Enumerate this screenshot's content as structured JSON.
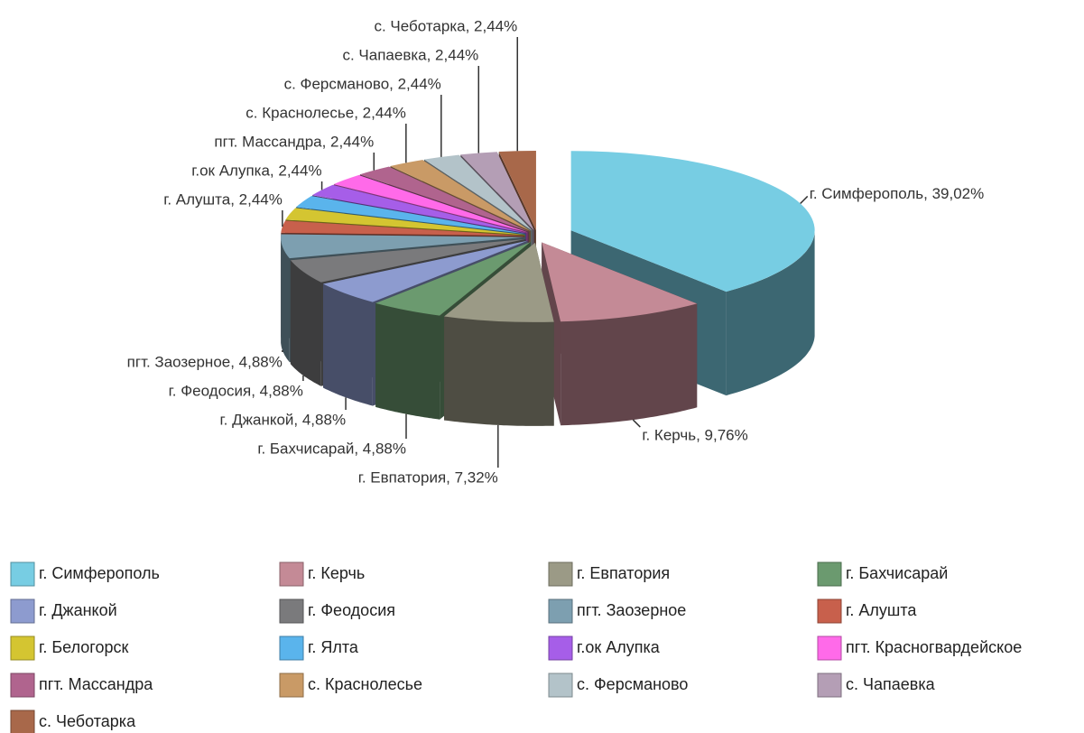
{
  "chart_data": {
    "type": "pie",
    "categories": [
      "г. Симферополь",
      "г. Керчь",
      "г. Евпатория",
      "г. Бахчисарай",
      "г. Джанкой",
      "г. Феодосия",
      "пгт. Заозерное",
      "г. Алушта",
      "г. Белогорск",
      "г. Ялта",
      "г.ок Алупка",
      "пгт. Красногвардейское",
      "пгт. Массандра",
      "с. Краснолесье",
      "с. Ферсманово",
      "с. Чапаевка",
      "с. Чеботарка"
    ],
    "values": [
      39.02,
      9.76,
      7.32,
      4.88,
      4.88,
      4.88,
      4.88,
      2.44,
      2.44,
      2.44,
      2.44,
      2.44,
      2.44,
      2.44,
      2.44,
      2.44,
      2.44
    ],
    "value_labels": [
      "г. Симферополь, 39,02%",
      "г. Керчь, 9,76%",
      "г. Евпатория, 7,32%",
      "г. Бахчисарай, 4,88%",
      "г. Джанкой, 4,88%",
      "г. Феодосия, 4,88%",
      "пгт. Заозерное, 4,88%",
      "г. Алушта, 2,44%",
      null,
      null,
      "г.ок Алупка, 2,44%",
      null,
      "пгт. Массандра, 2,44%",
      "с. Краснолесье, 2,44%",
      "с. Ферсманово, 2,44%",
      "с. Чапаевка, 2,44%",
      "с. Чеботарка, 2,44%"
    ],
    "colors": [
      "#77cde3",
      "#c48a96",
      "#9b9a86",
      "#6b9a6f",
      "#8d9bcf",
      "#7a7a7c",
      "#7d9fb0",
      "#c8604c",
      "#d4c531",
      "#5ab4ec",
      "#a65ee8",
      "#ff6ae9",
      "#b0648e",
      "#c99a66",
      "#b3c3c9",
      "#b49eb5",
      "#a8684a"
    ]
  }
}
